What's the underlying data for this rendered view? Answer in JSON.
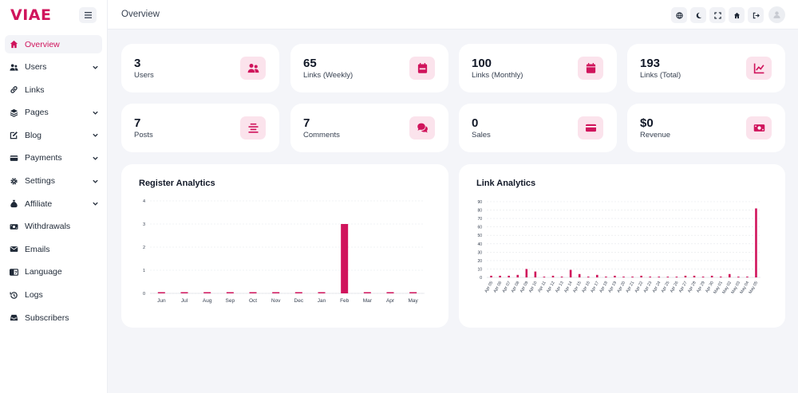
{
  "brand": "VIAE",
  "header": {
    "title": "Overview"
  },
  "colors": {
    "accent": "#d0145c",
    "accent_soft": "#fbe3ec"
  },
  "sidebar": {
    "items": [
      {
        "label": "Overview",
        "icon": "home-icon",
        "active": true,
        "expandable": false
      },
      {
        "label": "Users",
        "icon": "users-icon",
        "active": false,
        "expandable": true
      },
      {
        "label": "Links",
        "icon": "link-icon",
        "active": false,
        "expandable": false
      },
      {
        "label": "Pages",
        "icon": "layers-icon",
        "active": false,
        "expandable": true
      },
      {
        "label": "Blog",
        "icon": "edit-icon",
        "active": false,
        "expandable": true
      },
      {
        "label": "Payments",
        "icon": "credit-card-icon",
        "active": false,
        "expandable": true
      },
      {
        "label": "Settings",
        "icon": "gear-icon",
        "active": false,
        "expandable": true
      },
      {
        "label": "Affiliate",
        "icon": "money-bag-icon",
        "active": false,
        "expandable": true
      },
      {
        "label": "Withdrawals",
        "icon": "money-bill-icon",
        "active": false,
        "expandable": false
      },
      {
        "label": "Emails",
        "icon": "envelope-icon",
        "active": false,
        "expandable": false
      },
      {
        "label": "Language",
        "icon": "language-icon",
        "active": false,
        "expandable": false
      },
      {
        "label": "Logs",
        "icon": "history-icon",
        "active": false,
        "expandable": false
      },
      {
        "label": "Subscribers",
        "icon": "inbox-icon",
        "active": false,
        "expandable": false
      }
    ]
  },
  "toolbar_icons": [
    "globe-icon",
    "moon-icon",
    "fullscreen-icon",
    "home-icon",
    "logout-icon"
  ],
  "stats": [
    {
      "value": "3",
      "label": "Users",
      "icon": "users-icon"
    },
    {
      "value": "65",
      "label": "Links (Weekly)",
      "icon": "calendar-week-icon"
    },
    {
      "value": "100",
      "label": "Links (Monthly)",
      "icon": "calendar-icon"
    },
    {
      "value": "193",
      "label": "Links (Total)",
      "icon": "line-chart-icon"
    },
    {
      "value": "7",
      "label": "Posts",
      "icon": "align-center-icon"
    },
    {
      "value": "7",
      "label": "Comments",
      "icon": "comments-icon"
    },
    {
      "value": "0",
      "label": "Sales",
      "icon": "credit-card-icon"
    },
    {
      "value": "$0",
      "label": "Revenue",
      "icon": "money-bill-icon"
    }
  ],
  "chart_data": [
    {
      "type": "bar",
      "title": "Register Analytics",
      "categories": [
        "Jun",
        "Jul",
        "Aug",
        "Sep",
        "Oct",
        "Nov",
        "Dec",
        "Jan",
        "Feb",
        "Mar",
        "Apr",
        "May"
      ],
      "values": [
        0,
        0,
        0,
        0,
        0,
        0,
        0,
        0,
        3,
        0,
        0,
        0
      ],
      "ylim": [
        0,
        4
      ],
      "yticks": [
        "0",
        "1",
        "2",
        "3",
        "4"
      ],
      "grid": true
    },
    {
      "type": "bar",
      "title": "Link Analytics",
      "categories": [
        "Apr 05",
        "Apr 06",
        "Apr 07",
        "Apr 08",
        "Apr 09",
        "Apr 10",
        "Apr 11",
        "Apr 12",
        "Apr 13",
        "Apr 14",
        "Apr 15",
        "Apr 16",
        "Apr 17",
        "Apr 18",
        "Apr 19",
        "Apr 20",
        "Apr 21",
        "Apr 22",
        "Apr 23",
        "Apr 24",
        "Apr 25",
        "Apr 26",
        "Apr 27",
        "Apr 28",
        "Apr 29",
        "Apr 30",
        "May 01",
        "May 02",
        "May 03",
        "May 04",
        "May 05"
      ],
      "values": [
        2,
        2,
        2,
        3,
        10,
        7,
        0,
        2,
        1,
        9,
        4,
        1,
        3,
        1,
        2,
        1,
        1,
        2,
        1,
        1,
        0,
        0,
        2,
        2,
        1,
        2,
        1,
        4,
        0,
        1,
        82
      ],
      "ylim": [
        0,
        90
      ],
      "yticks": [
        "0",
        "10",
        "20",
        "30",
        "40",
        "50",
        "60",
        "70",
        "80",
        "90"
      ],
      "grid": true
    }
  ]
}
